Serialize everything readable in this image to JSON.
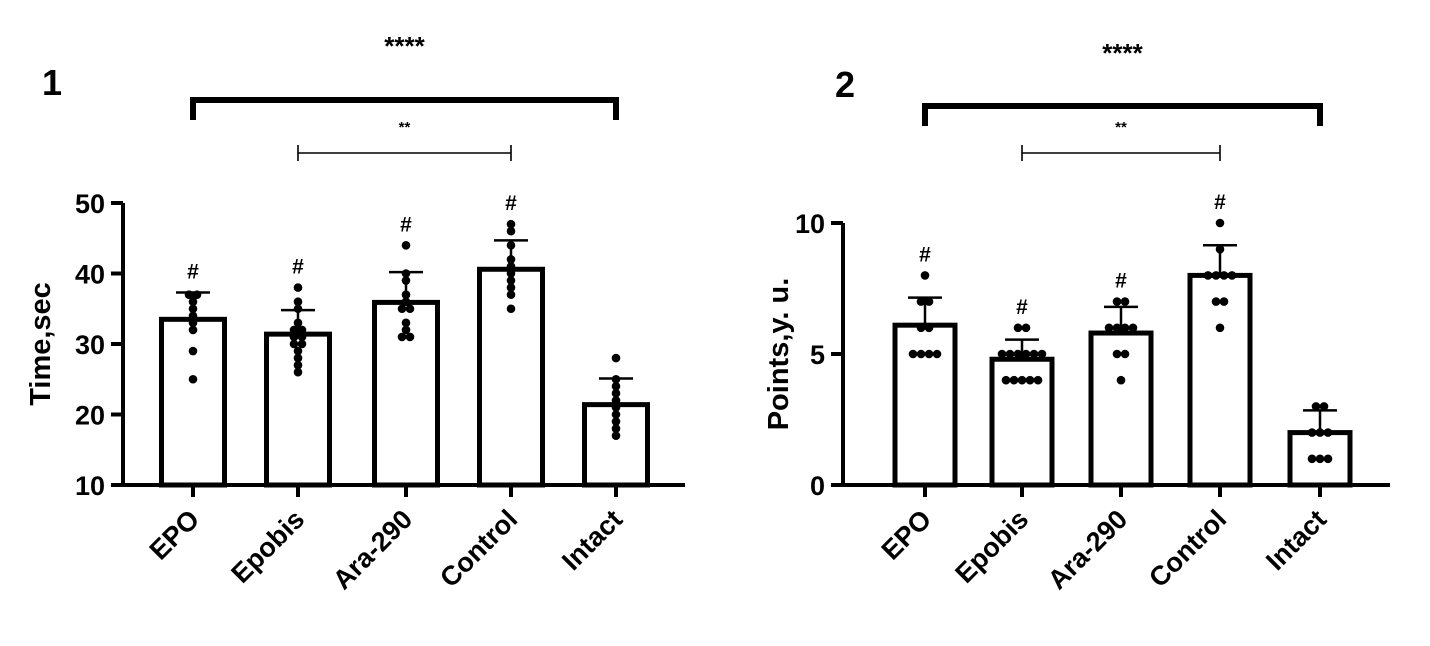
{
  "chart_data": [
    {
      "type": "bar",
      "panel_label": "1",
      "ylabel": "Time,sec",
      "ylim": [
        10,
        50
      ],
      "yticks": [
        10,
        20,
        30,
        40,
        50
      ],
      "categories": [
        "EPO",
        "Epobis",
        "Ara-290",
        "Control",
        "Intact"
      ],
      "values": [
        33.5,
        31.4,
        35.9,
        40.6,
        21.4
      ],
      "errors": [
        3.8,
        3.4,
        4.3,
        4.1,
        3.7
      ],
      "points": [
        [
          37,
          37,
          36,
          35,
          34,
          33,
          32,
          29,
          25
        ],
        [
          38,
          36,
          35,
          33,
          32,
          32,
          31,
          31,
          30,
          30,
          29,
          28,
          27,
          26
        ],
        [
          44,
          40,
          39,
          37,
          36,
          35,
          35,
          33,
          32,
          31,
          31
        ],
        [
          47,
          46,
          44,
          42,
          41,
          40,
          39,
          38,
          37,
          35
        ],
        [
          28,
          25,
          24,
          23,
          22,
          21,
          20,
          19,
          18,
          17
        ]
      ],
      "point_marks": [
        "#",
        "#",
        "#",
        "#",
        ""
      ],
      "comparisons": [
        {
          "from": 0,
          "to": 4,
          "label": "****"
        },
        {
          "from": 1,
          "to": 3,
          "label": "**"
        }
      ]
    },
    {
      "type": "bar",
      "panel_label": "2",
      "ylabel": "Points,y. u.",
      "ylim": [
        0,
        10
      ],
      "yticks": [
        0,
        5,
        10
      ],
      "categories": [
        "EPO",
        "Epobis",
        "Ara-290",
        "Control",
        "Intact"
      ],
      "values": [
        6.1,
        4.8,
        5.8,
        8.0,
        2.0
      ],
      "errors": [
        1.05,
        0.75,
        1.0,
        1.15,
        0.85
      ],
      "points": [
        [
          8,
          7,
          7,
          6,
          6,
          5,
          5,
          5,
          5
        ],
        [
          6,
          6,
          5,
          5,
          5,
          5,
          5,
          5,
          4,
          4,
          4,
          4,
          4
        ],
        [
          7,
          7,
          6,
          6,
          6,
          6,
          5,
          5,
          4
        ],
        [
          10,
          9,
          8,
          8,
          8,
          8,
          7,
          7,
          6
        ],
        [
          3,
          3,
          2,
          2,
          2,
          1,
          1,
          1
        ]
      ],
      "point_marks": [
        "#",
        "#",
        "#",
        "#",
        ""
      ],
      "comparisons": [
        {
          "from": 0,
          "to": 4,
          "label": "****"
        },
        {
          "from": 1,
          "to": 3,
          "label": "**"
        }
      ]
    }
  ]
}
